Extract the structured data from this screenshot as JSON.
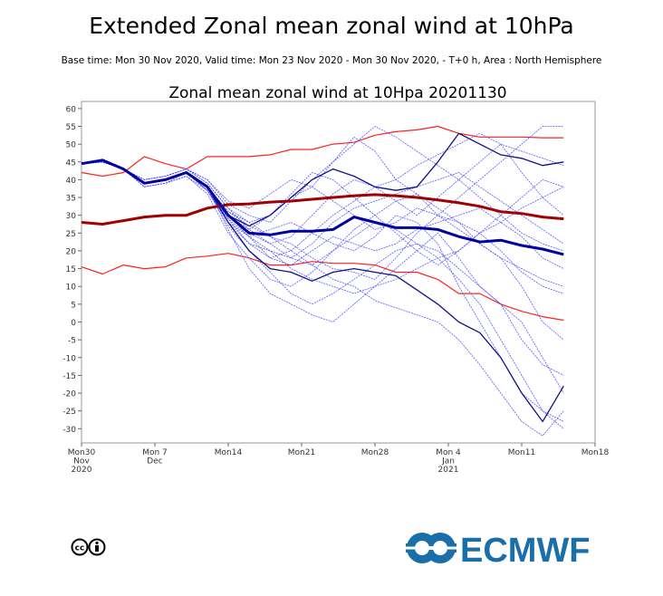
{
  "header": {
    "title": "Extended Zonal mean zonal wind at 10hPa",
    "subtitle": "Base time: Mon 30 Nov 2020, Valid time: Mon 23 Nov 2020 - Mon 30 Nov 2020, - T+0 h, Area : North Hemisphere"
  },
  "footer": {
    "license_icon": "creative-commons-by-icon",
    "logo_text": "ECMWF",
    "logo_color": "#1a6faa"
  },
  "chart_data": {
    "type": "line",
    "title": "Zonal mean zonal wind at 10Hpa 20201130",
    "xlabel": "",
    "ylabel": "",
    "x_unit": "days since Mon 30 Nov 2020",
    "xlim": [
      0,
      49
    ],
    "ylim": [
      -34,
      62
    ],
    "yticks": [
      60,
      55,
      50,
      45,
      40,
      35,
      30,
      25,
      20,
      15,
      10,
      5,
      0,
      -5,
      -10,
      -15,
      -20,
      -25,
      -30
    ],
    "xticks": [
      {
        "day": 0,
        "label": [
          "Mon30",
          "Nov",
          "2020"
        ]
      },
      {
        "day": 7,
        "label": [
          "Mon 7",
          "Dec"
        ]
      },
      {
        "day": 14,
        "label": [
          "Mon14"
        ]
      },
      {
        "day": 21,
        "label": [
          "Mon21"
        ]
      },
      {
        "day": 28,
        "label": [
          "Mon28"
        ]
      },
      {
        "day": 35,
        "label": [
          "Mon 4",
          "Jan",
          "2021"
        ]
      },
      {
        "day": 42,
        "label": [
          "Mon11"
        ]
      },
      {
        "day": 49,
        "label": [
          "Mon18"
        ]
      }
    ],
    "x": [
      0,
      2,
      4,
      6,
      8,
      10,
      12,
      14,
      16,
      18,
      20,
      22,
      24,
      26,
      28,
      30,
      32,
      34,
      36,
      38,
      40,
      42,
      44,
      46
    ],
    "colors": {
      "members": "#3b3bff",
      "mean": "#0000a0",
      "control": "#10108a",
      "clim_mean": "#a00000",
      "clim_range": "#ff2020"
    },
    "series": [
      {
        "name": "climate-max",
        "kind": "clim_range",
        "values": [
          42,
          41,
          42,
          46.5,
          44.5,
          43,
          46.5,
          46.5,
          46.5,
          47,
          48.5,
          48.5,
          50,
          50.5,
          52.5,
          53.5,
          54,
          55,
          53,
          52,
          52,
          52,
          51.8,
          51.8
        ]
      },
      {
        "name": "climate-min",
        "kind": "clim_range",
        "values": [
          15.5,
          13.5,
          16,
          15,
          15.5,
          18,
          18.5,
          19.3,
          18,
          16,
          16,
          17,
          16.5,
          16.5,
          16,
          14,
          14,
          12,
          8,
          8,
          5,
          3,
          1.5,
          0.5
        ]
      },
      {
        "name": "member-1",
        "kind": "members",
        "values": [
          44.5,
          45,
          43,
          38,
          39,
          42,
          37,
          28,
          22,
          18,
          20,
          25,
          30,
          34,
          38,
          40,
          44,
          47,
          50,
          53,
          50,
          48,
          46,
          44
        ]
      },
      {
        "name": "member-2",
        "kind": "members",
        "values": [
          44.5,
          45,
          43,
          40,
          41,
          43,
          39,
          32,
          28,
          30,
          35,
          38,
          45,
          52,
          48,
          40,
          36,
          30,
          28,
          25,
          20,
          14,
          10,
          8
        ]
      },
      {
        "name": "member-3",
        "kind": "members",
        "values": [
          44.5,
          45,
          43,
          39,
          40,
          42,
          38,
          26,
          15,
          8,
          5,
          2,
          0,
          5,
          10,
          12,
          15,
          18,
          20,
          25,
          30,
          35,
          40,
          38
        ]
      },
      {
        "name": "member-4",
        "kind": "members",
        "values": [
          44.5,
          45,
          43,
          39,
          40,
          42,
          38,
          30,
          25,
          22,
          18,
          16,
          20,
          24,
          28,
          26,
          22,
          20,
          15,
          10,
          5,
          0,
          -10,
          -20
        ]
      },
      {
        "name": "member-5",
        "kind": "members",
        "values": [
          44.5,
          45,
          43,
          38,
          39,
          41,
          36,
          25,
          18,
          12,
          10,
          14,
          20,
          26,
          30,
          34,
          36,
          32,
          28,
          22,
          18,
          10,
          0,
          -5
        ]
      },
      {
        "name": "member-6",
        "kind": "members",
        "values": [
          44.5,
          45,
          43,
          40,
          41,
          43,
          40,
          33,
          30,
          28,
          34,
          40,
          45,
          50,
          55,
          52,
          48,
          44,
          40,
          35,
          30,
          25,
          22,
          20
        ]
      },
      {
        "name": "member-7",
        "kind": "members",
        "values": [
          44.5,
          45,
          43,
          39,
          40,
          42,
          37,
          28,
          24,
          26,
          28,
          25,
          22,
          20,
          24,
          30,
          28,
          22,
          10,
          0,
          -10,
          -20,
          -25,
          -28
        ]
      },
      {
        "name": "member-8",
        "kind": "members",
        "values": [
          44.5,
          45,
          43,
          39,
          40,
          42,
          38,
          31,
          27,
          24,
          22,
          18,
          15,
          14,
          12,
          18,
          25,
          30,
          35,
          40,
          45,
          50,
          55,
          55
        ]
      },
      {
        "name": "member-9",
        "kind": "members",
        "values": [
          44.5,
          45,
          43,
          38,
          39,
          41,
          37,
          27,
          20,
          14,
          8,
          5,
          8,
          12,
          16,
          20,
          22,
          18,
          12,
          5,
          -5,
          -15,
          -25,
          -30
        ]
      },
      {
        "name": "member-10",
        "kind": "members",
        "values": [
          44.5,
          45,
          43,
          40,
          41,
          43,
          39,
          32,
          26,
          22,
          24,
          30,
          36,
          40,
          38,
          34,
          30,
          35,
          40,
          45,
          50,
          42,
          35,
          30
        ]
      },
      {
        "name": "member-11",
        "kind": "members",
        "values": [
          44.5,
          45,
          43,
          39,
          40,
          42,
          38,
          29,
          22,
          20,
          15,
          12,
          10,
          8,
          10,
          15,
          20,
          25,
          18,
          10,
          5,
          -5,
          -12,
          -15
        ]
      },
      {
        "name": "member-12",
        "kind": "members",
        "values": [
          44.5,
          45,
          43,
          39,
          40,
          42,
          38,
          30,
          26,
          30,
          36,
          42,
          40,
          35,
          30,
          25,
          20,
          16,
          20,
          25,
          28,
          32,
          35,
          38
        ]
      },
      {
        "name": "member-13",
        "kind": "members",
        "values": [
          44.5,
          45,
          43,
          39,
          40,
          42,
          37,
          29,
          24,
          20,
          18,
          22,
          28,
          32,
          34,
          36,
          38,
          40,
          42,
          38,
          34,
          30,
          26,
          22
        ]
      },
      {
        "name": "member-14",
        "kind": "members",
        "values": [
          44.5,
          45,
          43,
          39,
          40,
          42,
          38,
          31,
          28,
          24,
          20,
          16,
          12,
          10,
          6,
          4,
          2,
          0,
          -5,
          -12,
          -20,
          -28,
          -32,
          -25
        ]
      },
      {
        "name": "member-15",
        "kind": "members",
        "values": [
          44.5,
          45,
          43,
          40,
          41,
          43,
          40,
          34,
          32,
          36,
          40,
          38,
          34,
          30,
          26,
          28,
          32,
          30,
          26,
          22,
          18,
          15,
          12,
          10
        ]
      },
      {
        "name": "member-16",
        "kind": "members",
        "values": [
          44.5,
          45,
          43,
          39,
          40,
          42,
          38,
          30,
          24,
          18,
          16,
          20,
          24,
          22,
          20,
          22,
          26,
          28,
          30,
          32,
          28,
          24,
          18,
          15
        ]
      },
      {
        "name": "control-1",
        "kind": "control",
        "values": [
          44.5,
          45.5,
          43,
          39,
          40,
          42,
          38,
          28,
          20,
          15,
          14,
          11.5,
          14,
          15,
          14,
          13,
          9,
          5,
          0,
          -3,
          -10,
          -20,
          -28,
          -18
        ]
      },
      {
        "name": "control-2",
        "kind": "control",
        "values": [
          44.5,
          45.5,
          43,
          39,
          40,
          42,
          38,
          30,
          27,
          30,
          35,
          40,
          43,
          41,
          38,
          37,
          38,
          45,
          53,
          50,
          47,
          46,
          44,
          45
        ]
      },
      {
        "name": "climate-mean",
        "kind": "clim_mean",
        "values": [
          28,
          27.5,
          28.5,
          29.5,
          30,
          30,
          32,
          33,
          33.2,
          33.7,
          34,
          34.5,
          35,
          35.5,
          35.8,
          35.5,
          35,
          34.3,
          33.5,
          32.5,
          31,
          30.5,
          29.5,
          29
        ]
      },
      {
        "name": "ensemble-mean",
        "kind": "mean",
        "values": [
          44.5,
          45.5,
          43,
          39,
          40,
          42,
          38,
          30,
          25,
          24.5,
          25.5,
          25.5,
          26,
          29.5,
          28,
          26.5,
          26.5,
          26,
          24,
          22.5,
          23,
          21.5,
          20.5,
          19
        ]
      }
    ]
  }
}
